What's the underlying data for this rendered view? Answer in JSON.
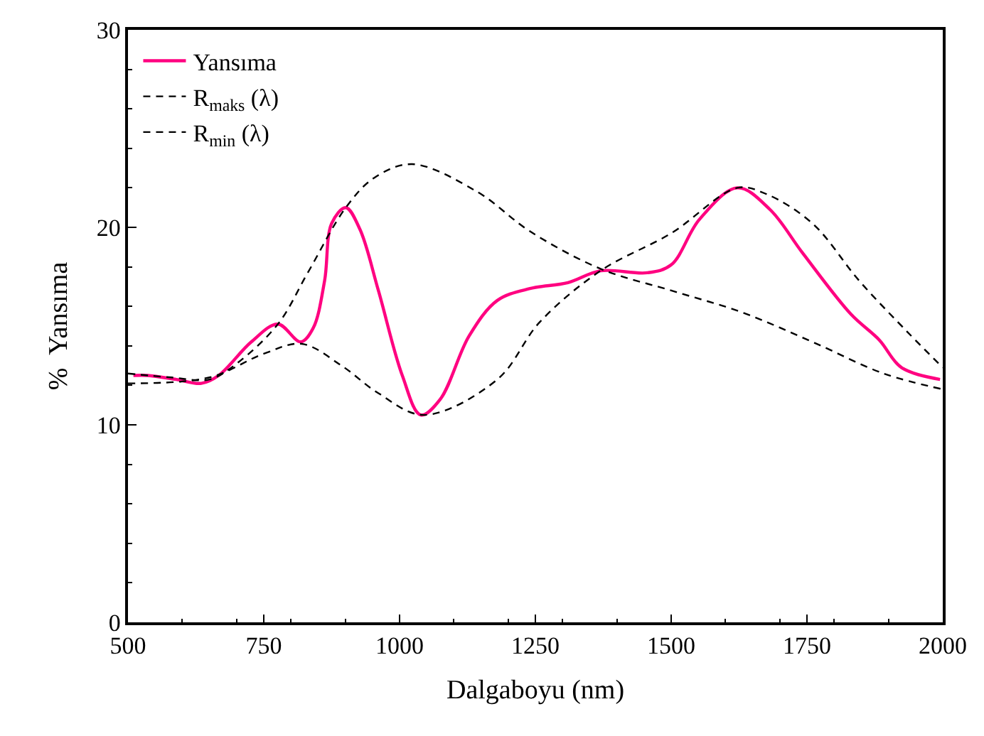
{
  "chart_data": {
    "type": "line",
    "xlabel": "Dalgaboyu (nm)",
    "ylabel": "%  Yansıma",
    "xlim": [
      500,
      2000
    ],
    "xticks": [
      500,
      750,
      1000,
      1250,
      1500,
      1750,
      2000
    ],
    "ylim": [
      0,
      30
    ],
    "yticks": [
      0,
      10,
      20,
      30
    ],
    "legend": "top left",
    "marker": "none",
    "series": [
      {
        "name": "Yansıma",
        "color": "#ff0080",
        "line_style": "solid",
        "x": [
          510,
          536,
          589,
          635,
          667,
          727,
          776,
          818,
          841,
          862,
          875,
          901,
          927,
          961,
          1005,
          1039,
          1075,
          1128,
          1180,
          1240,
          1310,
          1370,
          1456,
          1500,
          1552,
          1622,
          1682,
          1742,
          1831,
          1883,
          1924,
          1995
        ],
        "values": [
          12.5,
          12.5,
          12.3,
          12.1,
          12.5,
          14.2,
          15.1,
          14.2,
          14.9,
          17.3,
          20.2,
          21.0,
          19.9,
          16.8,
          12.5,
          10.5,
          11.3,
          14.5,
          16.3,
          16.9,
          17.2,
          17.8,
          17.7,
          18.1,
          20.4,
          22.0,
          20.9,
          18.7,
          15.6,
          14.3,
          12.9,
          12.3
        ]
      },
      {
        "name": "R$_{maks}$ (λ)",
        "color": "#000000",
        "line_style": "dashed",
        "x": [
          500,
          580,
          650,
          700,
          776,
          831,
          901,
          953,
          1023,
          1143,
          1240,
          1370,
          1500,
          1630,
          1760,
          1891,
          2000
        ],
        "values": [
          12.6,
          12.4,
          12.3,
          13.1,
          15.1,
          17.7,
          21.0,
          22.5,
          23.2,
          21.8,
          19.8,
          17.9,
          16.8,
          15.7,
          14.2,
          12.6,
          11.8
        ]
      },
      {
        "name": "R$_{min}$ (λ)",
        "color": "#000000",
        "line_style": "dashed",
        "x": [
          500,
          650,
          750,
          820,
          893,
          961,
          1045,
          1180,
          1258,
          1370,
          1500,
          1622,
          1674,
          1760,
          1846,
          1935,
          2000
        ],
        "values": [
          12.1,
          12.4,
          13.6,
          14.1,
          13.0,
          11.6,
          10.5,
          12.3,
          15.2,
          17.8,
          19.7,
          22.0,
          21.7,
          20.2,
          17.3,
          14.7,
          12.9
        ]
      }
    ]
  }
}
